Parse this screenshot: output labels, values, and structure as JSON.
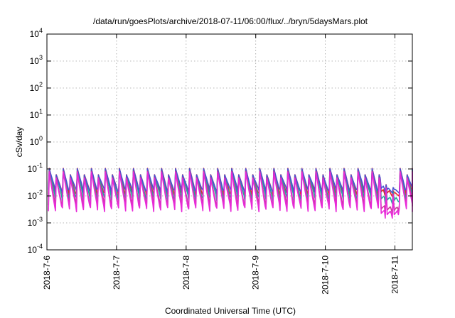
{
  "chart_data": {
    "type": "line",
    "title": "/data/run/goesPlots/archive/2018-07-11/06:00/flux/../bryn/5daysMars.plot",
    "xlabel": "Coordinated Universal Time (UTC)",
    "ylabel": "cSv/day",
    "yscale": "log",
    "ylim": [
      0.0001,
      10000
    ],
    "y_ticks": [
      {
        "value": 0.0001,
        "base": "10",
        "exp": "-4"
      },
      {
        "value": 0.001,
        "base": "10",
        "exp": "-3"
      },
      {
        "value": 0.01,
        "base": "10",
        "exp": "-2"
      },
      {
        "value": 0.1,
        "base": "10",
        "exp": "-1"
      },
      {
        "value": 1,
        "base": "10",
        "exp": "0"
      },
      {
        "value": 10,
        "base": "10",
        "exp": "1"
      },
      {
        "value": 100,
        "base": "10",
        "exp": "2"
      },
      {
        "value": 1000,
        "base": "10",
        "exp": "3"
      },
      {
        "value": 10000,
        "base": "10",
        "exp": "4"
      }
    ],
    "xlim": [
      "2018-07-06 00:00",
      "2018-07-11 06:00"
    ],
    "x_ticks": [
      {
        "value": "2018-07-06 00:00",
        "label": "2018-7-6"
      },
      {
        "value": "2018-07-07 00:00",
        "label": "2018-7-7"
      },
      {
        "value": "2018-07-08 00:00",
        "label": "2018-7-8"
      },
      {
        "value": "2018-07-09 00:00",
        "label": "2018-7-9"
      },
      {
        "value": "2018-07-10 00:00",
        "label": "2018-7-10"
      },
      {
        "value": "2018-07-11 00:00",
        "label": "2018-7-11"
      }
    ],
    "grid": true,
    "legend": "none",
    "pattern": {
      "peak_spacing_hours": 2.42,
      "first_peak": "2018-07-06 00:48",
      "peak_values": [
        0.102,
        0.06
      ],
      "dip": {
        "start": "2018-07-10 19:00",
        "end": "2018-07-11 00:30"
      }
    },
    "series": [
      {
        "color": "#e8222a",
        "peak": 0.105,
        "trough": 0.0125,
        "dip_floor": 0.0095
      },
      {
        "color": "#1ea7a0",
        "peak": 0.098,
        "trough": 0.0082,
        "dip_floor": 0.0052
      },
      {
        "color": "#4a52d0",
        "peak": 0.102,
        "trough": 0.0158,
        "dip_floor": 0.0128
      },
      {
        "color": "#c83c9a",
        "peak": 0.082,
        "trough": 0.0048,
        "dip_floor": 0.0022
      },
      {
        "color": "#e82ad8",
        "peak": 0.075,
        "trough": 0.0034,
        "dip_floor": 0.0015
      }
    ]
  }
}
